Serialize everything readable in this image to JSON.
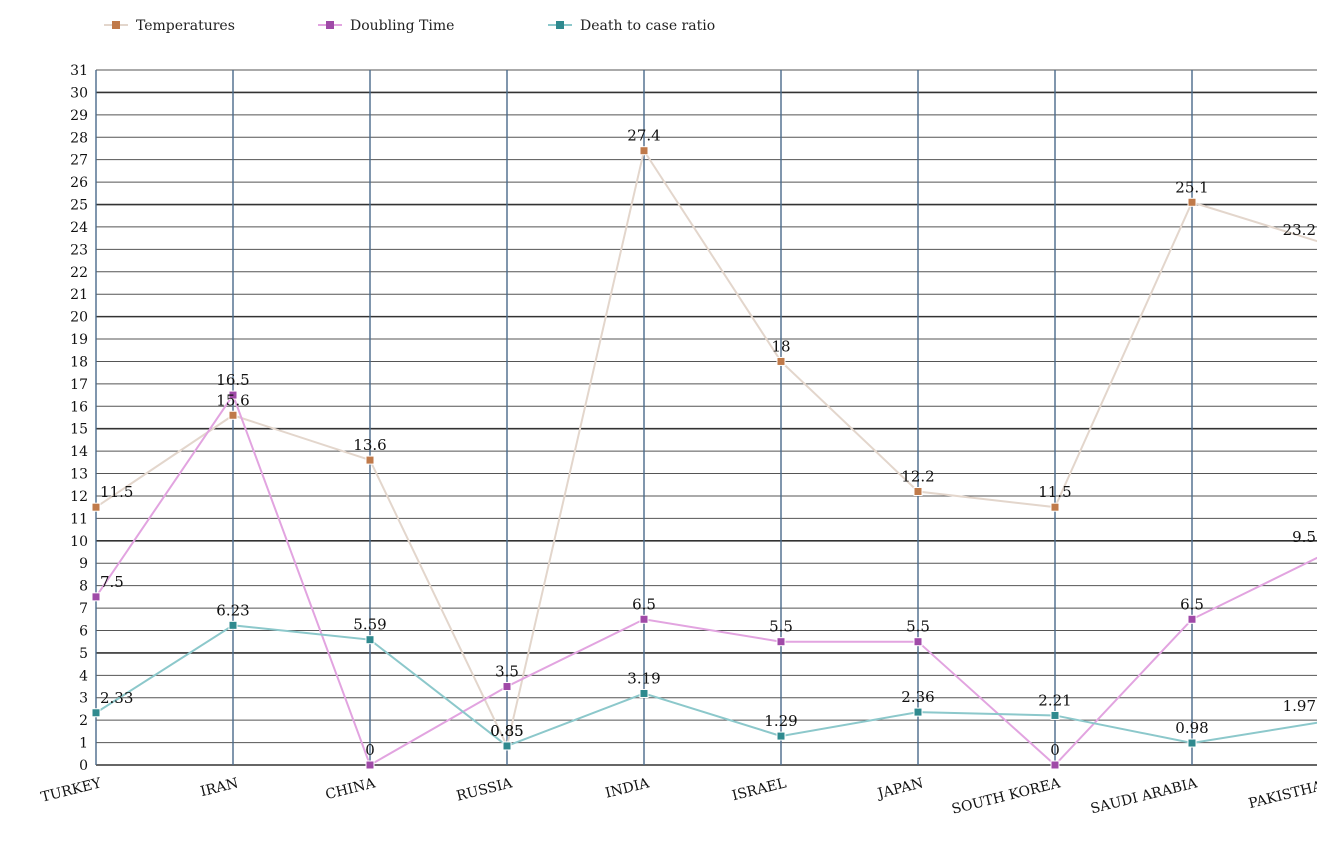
{
  "chart_data": {
    "type": "line",
    "categories": [
      "TURKEY",
      "IRAN",
      "CHINA",
      "RUSSIA",
      "INDIA",
      "ISRAEL",
      "JAPAN",
      "SOUTH KOREA",
      "SAUDI ARABIA",
      "PAKISTHAN"
    ],
    "series": [
      {
        "name": "Temperatures",
        "color": "#c07a4a",
        "line_color": "#e3d6cc",
        "values": [
          11.5,
          15.6,
          13.6,
          0.85,
          27.4,
          18,
          12.2,
          11.5,
          25.1,
          23.2
        ]
      },
      {
        "name": "Doubling Time",
        "color": "#a04aa8",
        "line_color": "#e2a4e0",
        "values": [
          7.5,
          16.5,
          0,
          3.5,
          6.5,
          5.5,
          5.5,
          0,
          6.5,
          9.5
        ]
      },
      {
        "name": "Death to case ratio",
        "color": "#2f8a8f",
        "line_color": "#8cc8cb",
        "values": [
          2.33,
          6.23,
          5.59,
          0.85,
          3.19,
          1.29,
          2.36,
          2.21,
          0.98,
          1.97
        ]
      }
    ],
    "data_labels": {
      "Temperatures": [
        "11.5",
        "15.6",
        "13.6",
        "0.85",
        "27.4",
        "18",
        "12.2",
        "11.5",
        "25.1",
        "23.2"
      ],
      "Doubling Time": [
        "7.5",
        "16.5",
        "0",
        "3.5",
        "6.5",
        "5.5",
        "5.5",
        "0",
        "6.5",
        "9.5"
      ],
      "Death to case ratio": [
        "2.33",
        "6.23",
        "5.59",
        "0.85",
        "3.19",
        "1.29",
        "2.36",
        "2.21",
        "0.98",
        "1.97"
      ]
    },
    "ylim": [
      0,
      31
    ],
    "yticks": [
      0,
      1,
      2,
      3,
      4,
      5,
      6,
      7,
      8,
      9,
      10,
      11,
      12,
      13,
      14,
      15,
      16,
      17,
      18,
      19,
      20,
      21,
      22,
      23,
      24,
      25,
      26,
      27,
      28,
      29,
      30,
      31
    ],
    "grid": true,
    "legend": "top-left",
    "title": "",
    "xlabel": "",
    "ylabel": ""
  }
}
